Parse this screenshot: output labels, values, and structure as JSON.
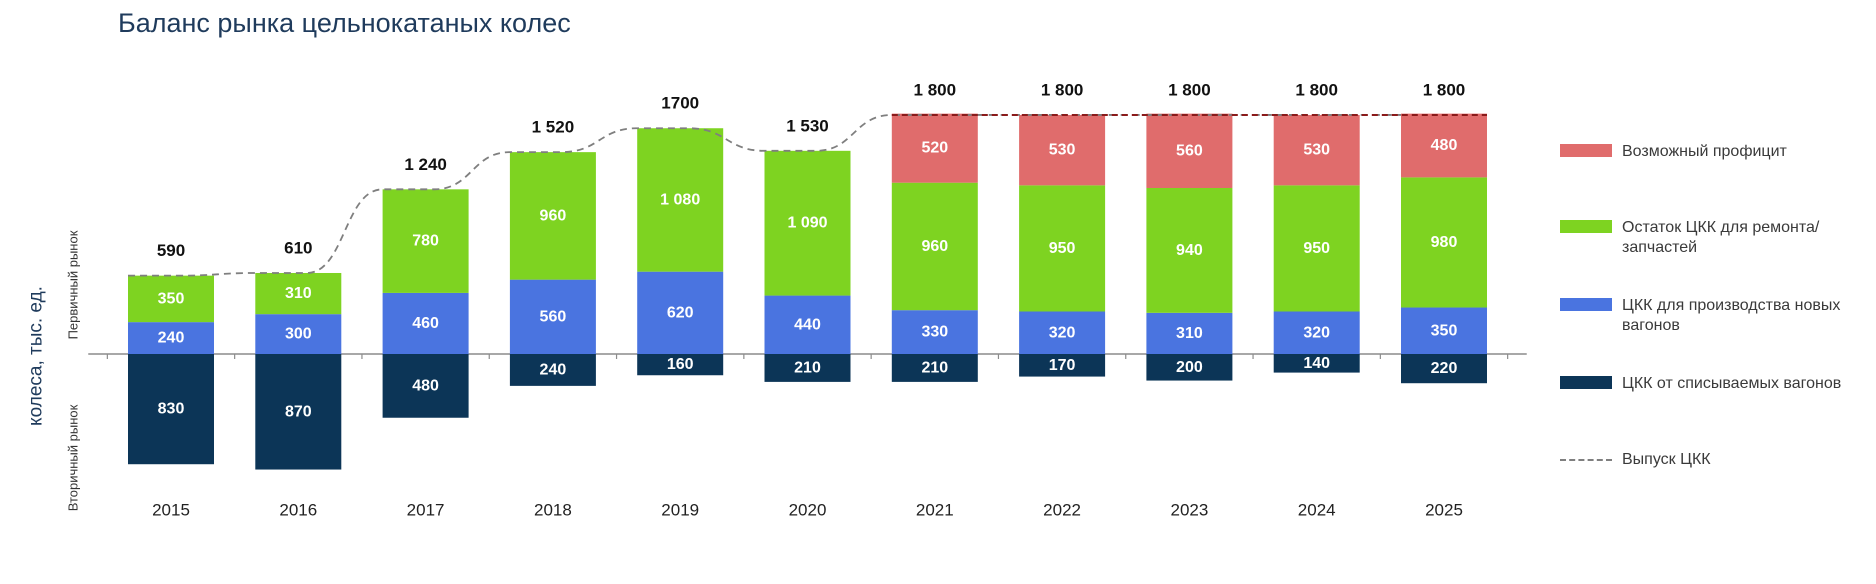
{
  "chart_data": {
    "type": "bar",
    "title": "Баланс рынка цельнокатаных колес",
    "ylabel": "колеса, тыс. ед.",
    "ylabel_primary": "Первичный рынок",
    "ylabel_secondary": "Вторичный рынок",
    "categories": [
      "2015",
      "2016",
      "2017",
      "2018",
      "2019",
      "2020",
      "2021",
      "2022",
      "2023",
      "2024",
      "2025"
    ],
    "series": [
      {
        "name": "Возможный профицит",
        "color": "#e06c6c",
        "values": [
          null,
          null,
          null,
          null,
          null,
          null,
          520,
          530,
          560,
          530,
          480
        ]
      },
      {
        "name": "Остаток ЦКК для ремонта/запчастей",
        "color": "#7ed321",
        "values": [
          350,
          310,
          780,
          960,
          1080,
          1090,
          960,
          950,
          940,
          950,
          980
        ]
      },
      {
        "name": "ЦКК для производства новых вагонов",
        "color": "#4a74e0",
        "values": [
          240,
          300,
          460,
          560,
          620,
          440,
          330,
          320,
          310,
          320,
          350
        ]
      },
      {
        "name": "ЦКК от списываемых вагонов",
        "color": "#0c3557",
        "values": [
          830,
          870,
          480,
          240,
          160,
          210,
          210,
          170,
          200,
          140,
          220
        ]
      }
    ],
    "line_series": {
      "name": "Выпуск ЦКК",
      "color": "#7f7f7f",
      "values": [
        590,
        610,
        1240,
        1520,
        1700,
        1530,
        1800,
        1800,
        1800,
        1800,
        1800
      ],
      "labels": [
        "590",
        "610",
        "1 240",
        "1 520",
        "1700",
        "1 530",
        "1 800",
        "1 800",
        "1 800",
        "1 800",
        "1 800"
      ]
    },
    "secondary_direction": "down",
    "legend_position": "right",
    "grid": false
  }
}
